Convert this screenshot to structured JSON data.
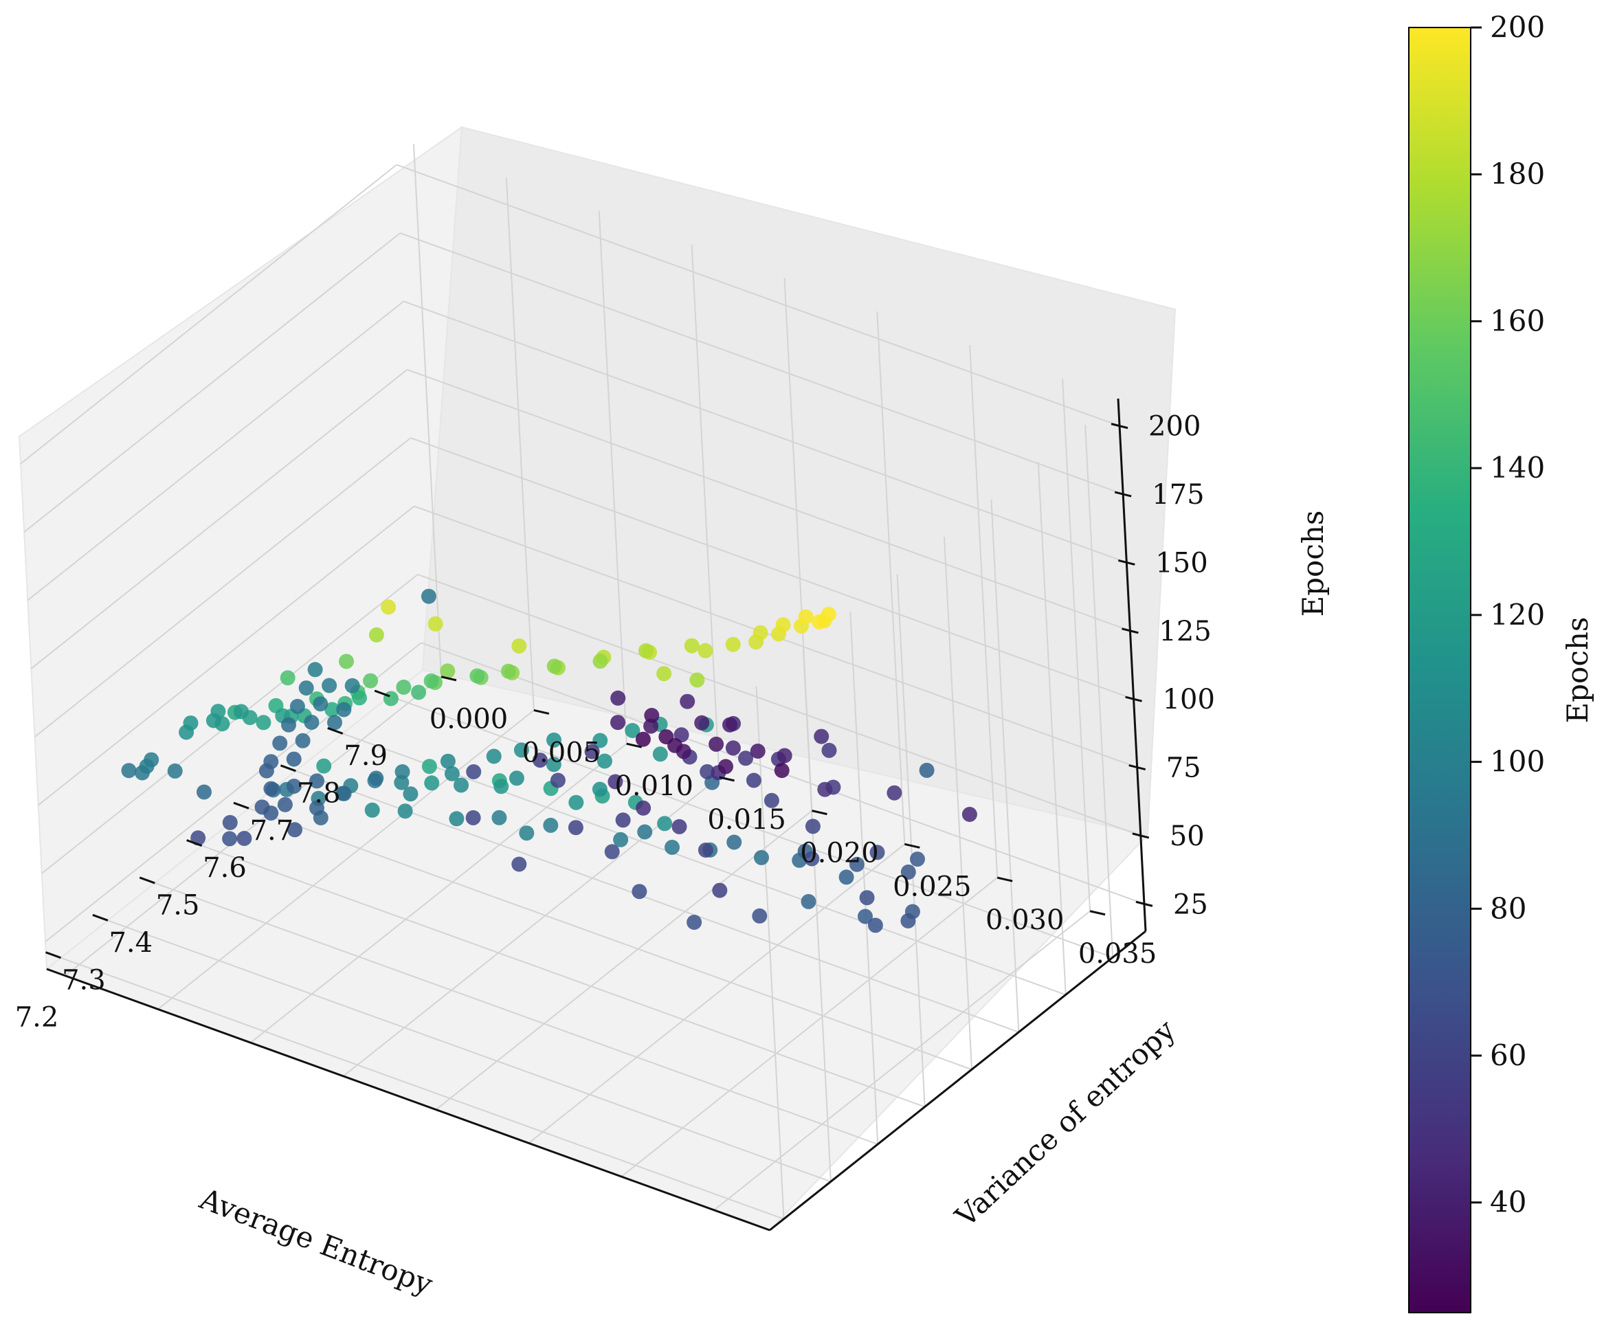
{
  "chart_data": {
    "type": "scatter",
    "projection": "3d",
    "colormap": "viridis",
    "x_axis": {
      "label": "Average Entropy",
      "range": [
        7.17,
        7.97
      ],
      "ticks": [
        7.2,
        7.3,
        7.4,
        7.5,
        7.6,
        7.7,
        7.8,
        7.9
      ],
      "tick_labels": [
        "7.2",
        "7.3",
        "7.4",
        "7.5",
        "7.6",
        "7.7",
        "7.8",
        "7.9"
      ]
    },
    "y_axis": {
      "label": "Variance of entropy",
      "range": [
        -0.001,
        0.038
      ],
      "ticks": [
        0.0,
        0.005,
        0.01,
        0.015,
        0.02,
        0.025,
        0.03,
        0.035
      ],
      "tick_labels": [
        "0.000",
        "0.005",
        "0.010",
        "0.015",
        "0.020",
        "0.025",
        "0.030",
        "0.035"
      ]
    },
    "z_axis": {
      "label": "Epochs",
      "range": [
        15,
        210
      ],
      "ticks": [
        25,
        50,
        75,
        100,
        125,
        150,
        175,
        200
      ],
      "tick_labels": [
        "25",
        "50",
        "75",
        "100",
        "125",
        "150",
        "175",
        "200"
      ]
    },
    "colorbar": {
      "label": "Epochs",
      "range": [
        25,
        200
      ],
      "ticks": [
        40,
        60,
        80,
        100,
        120,
        140,
        160,
        180,
        200
      ],
      "tick_labels": [
        "40",
        "60",
        "80",
        "100",
        "120",
        "140",
        "160",
        "180",
        "200"
      ]
    },
    "points": [
      [
        7.93,
        0.012,
        27
      ],
      [
        7.94,
        0.013,
        29
      ],
      [
        7.92,
        0.014,
        31
      ],
      [
        7.95,
        0.012,
        33
      ],
      [
        7.93,
        0.016,
        35
      ],
      [
        7.91,
        0.013,
        37
      ],
      [
        7.94,
        0.015,
        39
      ],
      [
        7.92,
        0.011,
        41
      ],
      [
        7.95,
        0.014,
        43
      ],
      [
        7.93,
        0.017,
        45
      ],
      [
        7.96,
        0.016,
        38
      ],
      [
        7.9,
        0.015,
        34
      ],
      [
        7.94,
        0.018,
        36
      ],
      [
        7.91,
        0.017,
        32
      ],
      [
        7.95,
        0.019,
        30
      ],
      [
        7.88,
        0.012,
        40
      ],
      [
        7.92,
        0.02,
        42
      ],
      [
        7.89,
        0.018,
        44
      ],
      [
        7.96,
        0.021,
        46
      ],
      [
        7.86,
        0.016,
        48
      ],
      [
        7.87,
        0.021,
        50
      ],
      [
        7.84,
        0.02,
        52
      ],
      [
        7.9,
        0.023,
        54
      ],
      [
        7.85,
        0.024,
        49
      ],
      [
        7.82,
        0.019,
        47
      ],
      [
        7.88,
        0.027,
        51
      ],
      [
        7.8,
        0.018,
        53
      ],
      [
        7.83,
        0.025,
        55
      ],
      [
        7.78,
        0.022,
        57
      ],
      [
        7.92,
        0.03,
        45
      ],
      [
        7.75,
        0.014,
        52
      ],
      [
        7.72,
        0.016,
        50
      ],
      [
        7.76,
        0.02,
        58
      ],
      [
        7.7,
        0.018,
        48
      ],
      [
        7.74,
        0.024,
        60
      ],
      [
        7.68,
        0.013,
        56
      ],
      [
        7.66,
        0.021,
        54
      ],
      [
        7.71,
        0.027,
        62
      ],
      [
        7.64,
        0.015,
        59
      ],
      [
        7.62,
        0.019,
        57
      ],
      [
        7.69,
        0.031,
        65
      ],
      [
        7.6,
        0.024,
        61
      ],
      [
        7.58,
        0.012,
        63
      ],
      [
        7.56,
        0.018,
        60
      ],
      [
        7.63,
        0.029,
        66
      ],
      [
        7.55,
        0.026,
        58
      ],
      [
        7.52,
        0.021,
        64
      ],
      [
        7.59,
        0.033,
        67
      ],
      [
        7.5,
        0.014,
        62
      ],
      [
        7.48,
        0.03,
        68
      ],
      [
        7.53,
        0.035,
        70
      ],
      [
        7.46,
        0.024,
        65
      ],
      [
        7.57,
        0.036,
        72
      ],
      [
        7.44,
        0.018,
        63
      ],
      [
        7.42,
        0.028,
        69
      ],
      [
        7.66,
        0.034,
        74
      ],
      [
        7.8,
        0.031,
        80
      ],
      [
        7.62,
        0.024,
        83
      ],
      [
        7.73,
        0.006,
        92
      ],
      [
        7.38,
        0.006,
        76
      ],
      [
        7.39,
        0.006,
        78
      ],
      [
        7.4,
        0.007,
        80
      ],
      [
        7.41,
        0.006,
        82
      ],
      [
        7.42,
        0.007,
        84
      ],
      [
        7.43,
        0.006,
        86
      ],
      [
        7.44,
        0.007,
        88
      ],
      [
        7.45,
        0.006,
        90
      ],
      [
        7.46,
        0.007,
        92
      ],
      [
        7.47,
        0.006,
        94
      ],
      [
        7.48,
        0.007,
        96
      ],
      [
        7.49,
        0.006,
        98
      ],
      [
        7.45,
        0.008,
        89
      ],
      [
        7.47,
        0.008,
        91
      ],
      [
        7.49,
        0.008,
        97
      ],
      [
        7.33,
        0.007,
        72
      ],
      [
        7.34,
        0.008,
        74
      ],
      [
        7.35,
        0.007,
        76
      ],
      [
        7.36,
        0.008,
        78
      ],
      [
        7.32,
        0.009,
        70
      ],
      [
        7.3,
        0.006,
        68
      ],
      [
        7.31,
        0.008,
        75
      ],
      [
        7.37,
        0.009,
        81
      ],
      [
        7.29,
        0.007,
        66
      ],
      [
        7.33,
        0.01,
        79
      ],
      [
        7.27,
        0.005,
        64
      ],
      [
        7.35,
        0.011,
        84
      ],
      [
        7.38,
        0.012,
        88
      ],
      [
        7.3,
        0.011,
        82
      ],
      [
        7.26,
        0.007,
        70
      ],
      [
        7.25,
        0.006,
        86
      ],
      [
        7.28,
        0.009,
        90
      ],
      [
        7.31,
        0.012,
        92
      ],
      [
        7.34,
        0.013,
        95
      ],
      [
        7.27,
        0.01,
        94
      ],
      [
        7.36,
        0.014,
        98
      ],
      [
        7.29,
        0.013,
        100
      ],
      [
        7.32,
        0.015,
        102
      ],
      [
        7.38,
        0.016,
        104
      ],
      [
        7.26,
        0.012,
        97
      ],
      [
        7.35,
        0.017,
        106
      ],
      [
        7.4,
        0.018,
        108
      ],
      [
        7.3,
        0.016,
        103
      ],
      [
        7.42,
        0.019,
        110
      ],
      [
        7.33,
        0.018,
        107
      ],
      [
        7.45,
        0.02,
        112
      ],
      [
        7.37,
        0.02,
        109
      ],
      [
        7.47,
        0.022,
        114
      ],
      [
        7.41,
        0.021,
        111
      ],
      [
        7.5,
        0.023,
        116
      ],
      [
        7.44,
        0.023,
        113
      ],
      [
        7.52,
        0.024,
        118
      ],
      [
        7.48,
        0.025,
        115
      ],
      [
        7.54,
        0.026,
        120
      ],
      [
        7.39,
        0.024,
        112
      ],
      [
        7.2,
        0.004,
        95
      ],
      [
        7.21,
        0.004,
        96
      ],
      [
        7.22,
        0.004,
        97
      ],
      [
        7.23,
        0.005,
        94
      ],
      [
        7.21,
        0.003,
        92
      ],
      [
        7.22,
        0.006,
        112
      ],
      [
        7.23,
        0.006,
        114
      ],
      [
        7.24,
        0.007,
        116
      ],
      [
        7.25,
        0.007,
        118
      ],
      [
        7.22,
        0.008,
        120
      ],
      [
        7.24,
        0.009,
        122
      ],
      [
        7.26,
        0.008,
        119
      ],
      [
        7.23,
        0.01,
        124
      ],
      [
        7.25,
        0.011,
        126
      ],
      [
        7.27,
        0.01,
        121
      ],
      [
        7.21,
        0.009,
        128
      ],
      [
        7.24,
        0.012,
        130
      ],
      [
        7.26,
        0.013,
        132
      ],
      [
        7.22,
        0.011,
        134
      ],
      [
        7.28,
        0.014,
        136
      ],
      [
        7.25,
        0.014,
        138
      ],
      [
        7.23,
        0.013,
        140
      ],
      [
        7.27,
        0.016,
        142
      ],
      [
        7.29,
        0.017,
        144
      ],
      [
        7.24,
        0.015,
        146
      ],
      [
        7.21,
        0.012,
        148
      ],
      [
        7.26,
        0.017,
        150
      ],
      [
        7.28,
        0.018,
        152
      ],
      [
        7.23,
        0.016,
        154
      ],
      [
        7.3,
        0.02,
        156
      ],
      [
        7.25,
        0.019,
        158
      ],
      [
        7.22,
        0.015,
        160
      ],
      [
        7.27,
        0.021,
        162
      ],
      [
        7.29,
        0.022,
        164
      ],
      [
        7.24,
        0.02,
        166
      ],
      [
        7.31,
        0.024,
        168
      ],
      [
        7.26,
        0.023,
        170
      ],
      [
        7.33,
        0.026,
        172
      ],
      [
        7.28,
        0.025,
        174
      ],
      [
        7.21,
        0.017,
        176
      ],
      [
        7.35,
        0.028,
        178
      ],
      [
        7.3,
        0.027,
        180
      ],
      [
        7.37,
        0.03,
        182
      ],
      [
        7.32,
        0.029,
        184
      ],
      [
        7.22,
        0.02,
        186
      ],
      [
        7.39,
        0.033,
        188
      ],
      [
        7.34,
        0.031,
        176
      ],
      [
        7.4,
        0.033,
        190
      ],
      [
        7.4,
        0.034,
        192
      ],
      [
        7.41,
        0.034,
        194
      ],
      [
        7.41,
        0.035,
        196
      ],
      [
        7.42,
        0.035,
        198
      ],
      [
        7.42,
        0.036,
        199
      ],
      [
        7.43,
        0.036,
        200
      ],
      [
        7.41,
        0.036,
        200
      ],
      [
        7.2,
        0.018,
        190
      ],
      [
        7.24,
        0.024,
        185
      ],
      [
        7.36,
        0.031,
        184
      ],
      [
        7.38,
        0.032,
        186
      ],
      [
        7.31,
        0.03,
        180
      ],
      [
        7.23,
        0.019,
        130
      ],
      [
        7.26,
        0.022,
        128
      ],
      [
        7.29,
        0.024,
        126
      ],
      [
        7.2,
        0.014,
        122
      ],
      [
        7.32,
        0.026,
        124
      ],
      [
        7.35,
        0.027,
        120
      ],
      [
        7.3,
        0.021,
        118
      ],
      [
        7.27,
        0.018,
        116
      ],
      [
        7.34,
        0.024,
        114
      ],
      [
        7.37,
        0.028,
        112
      ],
      [
        7.22,
        0.016,
        108
      ],
      [
        7.25,
        0.017,
        106
      ],
      [
        7.28,
        0.019,
        104
      ],
      [
        7.31,
        0.022,
        102
      ],
      [
        7.33,
        0.02,
        100
      ],
      [
        7.36,
        0.022,
        98
      ],
      [
        7.39,
        0.025,
        96
      ],
      [
        7.42,
        0.027,
        94
      ],
      [
        7.44,
        0.025,
        92
      ],
      [
        7.46,
        0.028,
        90
      ],
      [
        7.49,
        0.03,
        88
      ],
      [
        7.51,
        0.028,
        86
      ],
      [
        7.53,
        0.031,
        84
      ],
      [
        7.47,
        0.033,
        82
      ],
      [
        7.55,
        0.033,
        80
      ],
      [
        7.58,
        0.03,
        78
      ],
      [
        7.51,
        0.035,
        76
      ],
      [
        7.61,
        0.032,
        74
      ],
      [
        7.64,
        0.034,
        72
      ],
      [
        7.56,
        0.036,
        70
      ]
    ]
  }
}
